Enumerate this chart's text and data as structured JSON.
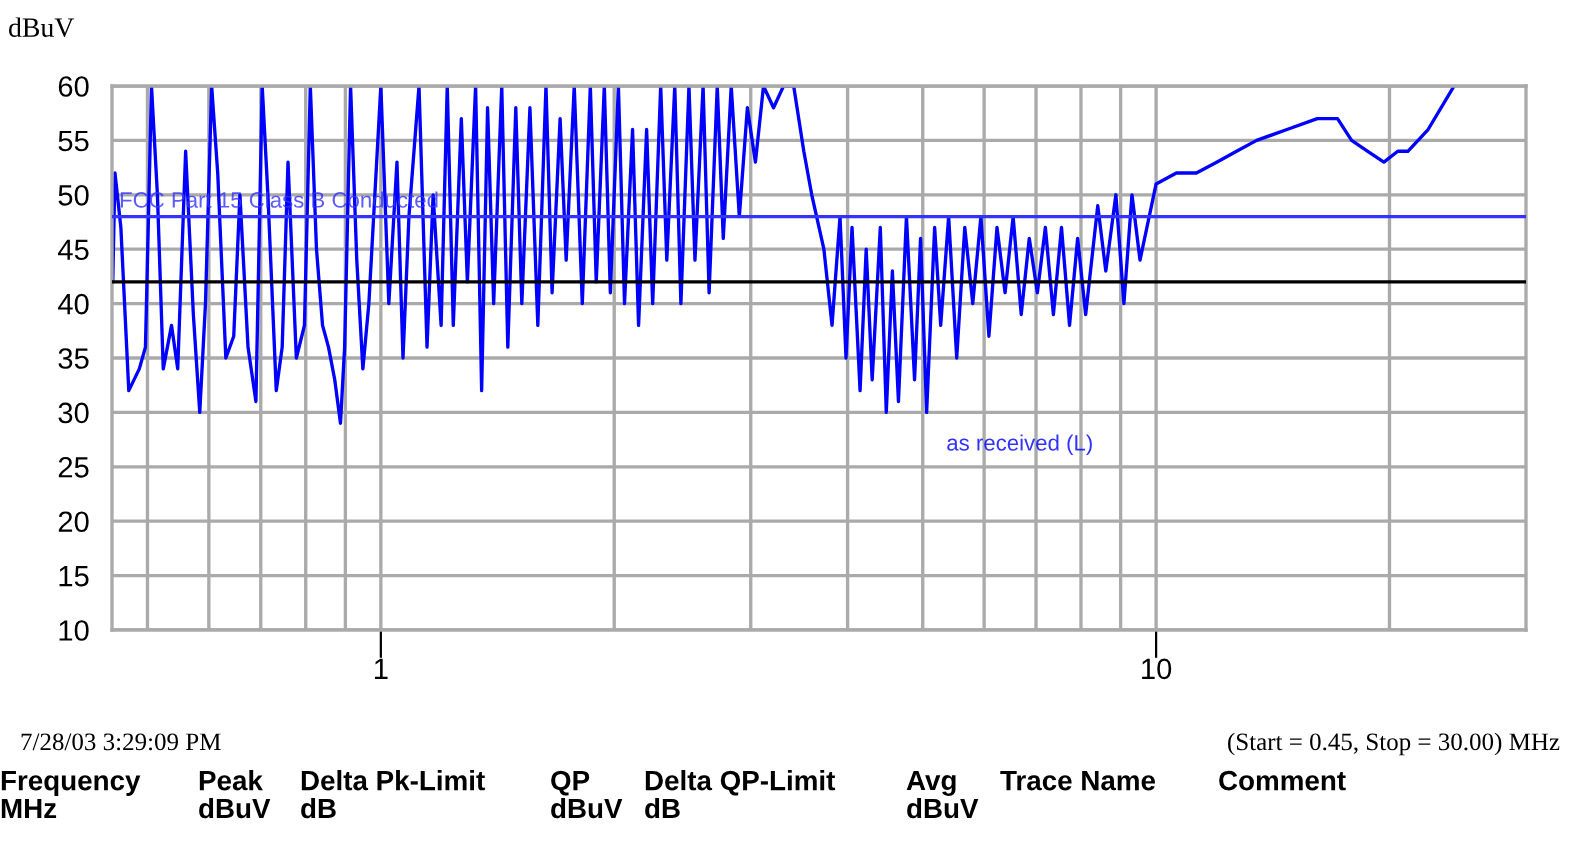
{
  "chart_data": {
    "type": "line",
    "ylabel": "dBuV",
    "log": "x",
    "grid": true,
    "legend": false,
    "line_style": "solid",
    "marker": "none",
    "xlim": [
      0.45,
      30
    ],
    "ylim": [
      10,
      60
    ],
    "xticks": [
      {
        "value": 0.5,
        "label": null
      },
      {
        "value": 0.6,
        "label": null
      },
      {
        "value": 0.7,
        "label": null
      },
      {
        "value": 0.8,
        "label": null
      },
      {
        "value": 0.9,
        "label": null
      },
      1,
      {
        "value": 2,
        "label": null
      },
      {
        "value": 3,
        "label": null
      },
      {
        "value": 4,
        "label": null
      },
      {
        "value": 5,
        "label": null
      },
      {
        "value": 6,
        "label": null
      },
      {
        "value": 7,
        "label": null
      },
      {
        "value": 8,
        "label": null
      },
      {
        "value": 9,
        "label": null
      },
      10,
      {
        "value": 20,
        "label": null
      }
    ],
    "yticks": [
      10,
      15,
      20,
      25,
      30,
      35,
      40,
      45,
      50,
      55,
      60
    ],
    "ref_lines": [
      {
        "axis": "y",
        "value": 48,
        "label": "FCC Part 15 Class B Conducted",
        "color": "#3333ff"
      },
      {
        "axis": "y",
        "value": 42,
        "label": null,
        "color": "#000000"
      }
    ],
    "series": [
      {
        "name": "as received (L)",
        "color": "#0000ff",
        "x": [
          0.451,
          0.454,
          0.462,
          0.473,
          0.488,
          0.497,
          0.506,
          0.515,
          0.524,
          0.537,
          0.547,
          0.56,
          0.573,
          0.584,
          0.594,
          0.605,
          0.616,
          0.631,
          0.646,
          0.658,
          0.674,
          0.69,
          0.703,
          0.715,
          0.733,
          0.746,
          0.759,
          0.778,
          0.797,
          0.811,
          0.826,
          0.841,
          0.856,
          0.872,
          0.887,
          0.898,
          0.914,
          0.931,
          0.948,
          0.965,
          1.0,
          1.024,
          1.049,
          1.068,
          1.087,
          1.12,
          1.147,
          1.168,
          1.196,
          1.218,
          1.24,
          1.27,
          1.293,
          1.325,
          1.349,
          1.373,
          1.398,
          1.432,
          1.458,
          1.493,
          1.52,
          1.557,
          1.594,
          1.633,
          1.663,
          1.703,
          1.734,
          1.776,
          1.819,
          1.863,
          1.896,
          1.942,
          1.977,
          2.025,
          2.062,
          2.112,
          2.15,
          2.202,
          2.242,
          2.296,
          2.338,
          2.394,
          2.438,
          2.497,
          2.542,
          2.604,
          2.651,
          2.716,
          2.765,
          2.831,
          2.9,
          2.97,
          3.042,
          3.116,
          3.21,
          3.307,
          3.408,
          3.512,
          3.596,
          3.728,
          3.819,
          3.911,
          3.981,
          4.053,
          4.151,
          4.227,
          4.303,
          4.408,
          4.487,
          4.569,
          4.652,
          4.764,
          4.88,
          4.968,
          5.058,
          5.18,
          5.274,
          5.4,
          5.531,
          5.665,
          5.801,
          5.943,
          6.086,
          6.234,
          6.385,
          6.54,
          6.699,
          6.861,
          7.028,
          7.197,
          7.371,
          7.55,
          7.733,
          7.921,
          8.112,
          8.409,
          8.612,
          8.874,
          9.088,
          9.308,
          9.533,
          10.0,
          10.62,
          11.27,
          11.97,
          12.7,
          13.48,
          14.75,
          16.14,
          17.14,
          17.87,
          18.75,
          19.67,
          20.5,
          21.12,
          22.43,
          24.23
        ],
        "values": [
          42,
          52,
          47,
          32,
          34,
          36,
          60,
          50,
          34,
          38,
          34,
          54,
          39,
          30,
          40,
          60,
          52,
          35,
          37,
          50,
          36,
          31,
          60,
          50,
          32,
          36,
          53,
          35,
          38,
          60,
          45,
          38,
          36,
          33,
          29,
          36,
          60,
          44,
          34,
          40,
          60,
          40,
          53,
          35,
          48,
          60,
          36,
          50,
          38,
          60,
          38,
          57,
          42,
          60,
          32,
          58,
          40,
          60,
          36,
          58,
          40,
          58,
          38,
          60,
          41,
          57,
          44,
          60,
          40,
          60,
          42,
          60,
          41,
          60,
          40,
          56,
          38,
          56,
          40,
          60,
          44,
          60,
          40,
          60,
          44,
          60,
          41,
          60,
          46,
          60,
          48,
          58,
          53,
          60,
          58,
          60,
          60,
          54,
          50,
          45,
          38,
          48,
          35,
          47,
          32,
          45,
          33,
          47,
          30,
          43,
          31,
          48,
          33,
          46,
          30,
          47,
          38,
          48,
          35,
          47,
          40,
          48,
          37,
          47,
          41,
          48,
          39,
          46,
          41,
          47,
          39,
          47,
          38,
          46,
          39,
          49,
          43,
          50,
          40,
          50,
          44,
          51,
          52,
          52,
          53,
          54,
          55,
          56,
          57,
          57,
          55,
          54,
          53,
          54,
          54,
          56,
          60
        ]
      }
    ],
    "annotations": [
      "7/28/03 3:29:09 PM",
      "(Start = 0.45, Stop = 30.00) MHz",
      "Frequency\nMHz",
      "Peak\ndBuV",
      "Delta Pk-Limit\ndB",
      "QP\ndBuV",
      "Delta QP-Limit\ndB",
      "Avg\ndBuV",
      "Trace Name",
      "Comment"
    ]
  }
}
